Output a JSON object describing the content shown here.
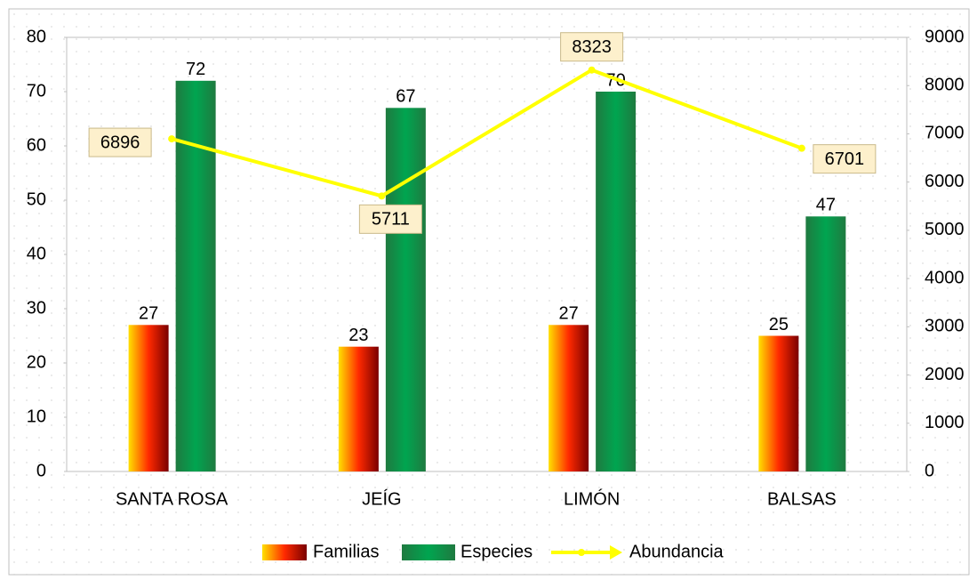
{
  "chart_data": {
    "type": "bar",
    "categories": [
      "SANTA ROSA",
      "JEÍG",
      "LIMÓN",
      "BALSAS"
    ],
    "series": [
      {
        "name": "Familias",
        "color": "#ff2a00",
        "values": [
          27,
          23,
          27,
          25
        ]
      },
      {
        "name": "Especies",
        "color": "#00a550",
        "values": [
          72,
          67,
          70,
          47
        ]
      },
      {
        "name": "Abundancia",
        "color": "#ffff00",
        "type": "line",
        "axis": "y2",
        "values": [
          6896,
          5711,
          8323,
          6701
        ]
      }
    ],
    "ylim": [
      0,
      80
    ],
    "yticks": [
      0,
      10,
      20,
      30,
      40,
      50,
      60,
      70,
      80
    ],
    "y2lim": [
      0,
      9000
    ],
    "y2ticks": [
      0,
      1000,
      2000,
      3000,
      4000,
      5000,
      6000,
      7000,
      8000,
      9000
    ],
    "legend": "bottom"
  }
}
